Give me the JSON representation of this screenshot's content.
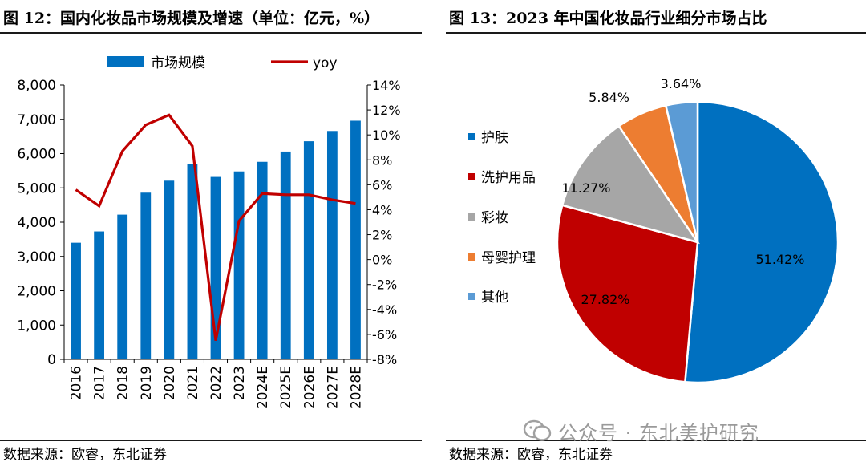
{
  "left_panel": {
    "title": "图 12：国内化妆品市场规模及增速（单位：亿元，%）",
    "source": "数据来源：欧睿，东北证券"
  },
  "right_panel": {
    "title": "图 13：2023 年中国化妆品行业细分市场占比",
    "source": "数据来源：欧睿，东北证券"
  },
  "watermark": "公众号 · 东北美护研究",
  "colors": {
    "bar": "#0070c0",
    "line": "#c00000",
    "pie": [
      "#0070c0",
      "#c00000",
      "#a6a6a6",
      "#ed7d31",
      "#5b9bd5"
    ]
  },
  "chart_data": [
    {
      "type": "bar",
      "categories": [
        "2016",
        "2017",
        "2018",
        "2019",
        "2020",
        "2021",
        "2022",
        "2023",
        "2024E",
        "2025E",
        "2026E",
        "2027E",
        "2028E"
      ],
      "series": [
        {
          "name": "市场规模",
          "type": "bar",
          "axis": "left",
          "values": [
            3400,
            3730,
            4220,
            4860,
            5210,
            5690,
            5320,
            5480,
            5760,
            6060,
            6360,
            6660,
            6960
          ]
        },
        {
          "name": "yoy",
          "type": "line",
          "axis": "right",
          "values": [
            5.6,
            4.3,
            8.7,
            10.8,
            11.6,
            9.1,
            -6.5,
            3.1,
            5.3,
            5.2,
            5.2,
            4.8,
            4.5
          ]
        }
      ],
      "ylim": [
        0,
        8000
      ],
      "yticks": [
        "0",
        "1,000",
        "2,000",
        "3,000",
        "4,000",
        "5,000",
        "6,000",
        "7,000",
        "8,000"
      ],
      "y2lim": [
        -8,
        14
      ],
      "y2ticks": [
        "-8%",
        "-6%",
        "-4%",
        "-2%",
        "0%",
        "2%",
        "4%",
        "6%",
        "8%",
        "10%",
        "12%",
        "14%"
      ],
      "legend_position": "top",
      "grid": false
    },
    {
      "type": "pie",
      "labels": [
        "护肤",
        "洗护用品",
        "彩妆",
        "母婴护理",
        "其他"
      ],
      "values": [
        51.42,
        27.82,
        11.27,
        5.84,
        3.64
      ],
      "value_labels": [
        "51.42%",
        "27.82%",
        "11.27%",
        "5.84%",
        "3.64%"
      ],
      "legend_position": "left"
    }
  ]
}
